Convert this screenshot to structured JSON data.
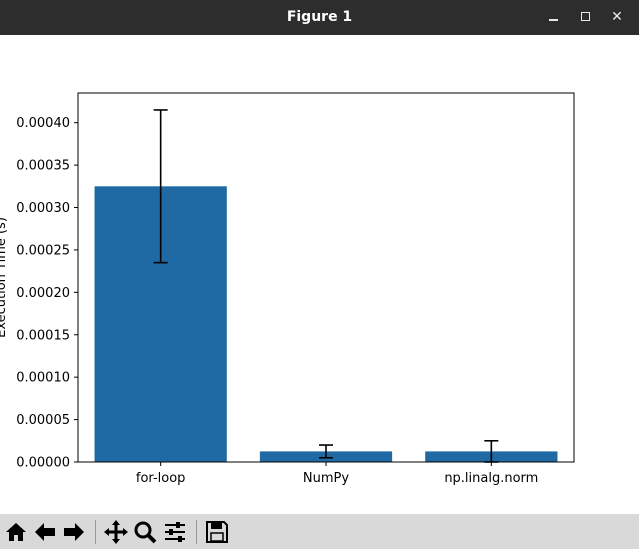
{
  "window": {
    "title": "Figure 1",
    "controls": [
      "minimize-icon",
      "maximize-icon",
      "close-icon"
    ]
  },
  "toolbar": {
    "buttons": [
      {
        "name": "home-button",
        "icon": "home-icon"
      },
      {
        "name": "back-button",
        "icon": "arrow-left-icon"
      },
      {
        "name": "forward-button",
        "icon": "arrow-right-icon"
      },
      {
        "name": "pan-button",
        "icon": "move-icon"
      },
      {
        "name": "zoom-button",
        "icon": "magnifier-icon"
      },
      {
        "name": "configure-subplots-button",
        "icon": "sliders-icon"
      },
      {
        "name": "save-button",
        "icon": "floppy-disk-icon"
      }
    ]
  },
  "chart_data": {
    "type": "bar",
    "categories": [
      "for-loop",
      "NumPy",
      "np.linalg.norm"
    ],
    "values": [
      0.000325,
      1.25e-05,
      1.25e-05
    ],
    "errors": [
      9e-05,
      7.5e-06,
      1.25e-05
    ],
    "title": "",
    "xlabel": "",
    "ylabel": "Execution Time (s)",
    "ylim": [
      0,
      0.000435
    ],
    "yticks": [
      "0.00000",
      "0.00005",
      "0.00010",
      "0.00015",
      "0.00020",
      "0.00025",
      "0.00030",
      "0.00035",
      "0.00040"
    ],
    "ytick_values": [
      0,
      5e-05,
      0.0001,
      0.00015,
      0.0002,
      0.00025,
      0.0003,
      0.00035,
      0.0004
    ],
    "bar_color": "#1f6aa5",
    "grid": false
  }
}
